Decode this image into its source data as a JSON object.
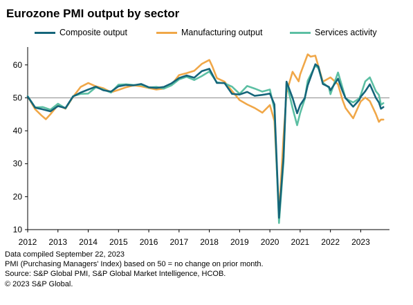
{
  "title": "Eurozone PMI output by sector",
  "footer": {
    "line1": "Data compiled September 22, 2023",
    "line2": "PMI (Purchasing Managers' Index) based on 50 = no change on prior month.",
    "line3": "Source: S&P Global PMI, S&P Global Market Intelligence, HCOB.",
    "line4": "© 2023 S&P Global."
  },
  "colors": {
    "composite": "#15657a",
    "manufacturing": "#f0a748",
    "services": "#5cbfa3",
    "baseline": "#8c8c8c",
    "axis": "#000000"
  },
  "chart_data": {
    "type": "line",
    "title": "Eurozone PMI output by sector",
    "xlabel": "",
    "ylabel": "",
    "xlim": [
      2012.0,
      2023.95
    ],
    "ylim": [
      10,
      65
    ],
    "y_ticks": [
      10,
      20,
      30,
      40,
      50,
      60
    ],
    "x_ticks": [
      "2012",
      "2013",
      "2014",
      "2015",
      "2016",
      "2017",
      "2018",
      "2019",
      "2020",
      "2021",
      "2022",
      "2023"
    ],
    "reference_line": 50,
    "grid": false,
    "legend_position": "top",
    "series": [
      {
        "name": "Composite output",
        "points": [
          [
            2012.0,
            50.4
          ],
          [
            2012.25,
            47.0
          ],
          [
            2012.5,
            46.5
          ],
          [
            2012.75,
            45.9
          ],
          [
            2013.0,
            47.5
          ],
          [
            2013.25,
            46.9
          ],
          [
            2013.5,
            50.4
          ],
          [
            2013.75,
            51.6
          ],
          [
            2014.0,
            52.5
          ],
          [
            2014.25,
            53.4
          ],
          [
            2014.5,
            52.3
          ],
          [
            2014.75,
            51.9
          ],
          [
            2015.0,
            53.5
          ],
          [
            2015.25,
            53.9
          ],
          [
            2015.5,
            53.8
          ],
          [
            2015.75,
            54.2
          ],
          [
            2016.0,
            53.2
          ],
          [
            2016.25,
            53.0
          ],
          [
            2016.5,
            53.3
          ],
          [
            2016.75,
            54.4
          ],
          [
            2017.0,
            56.0
          ],
          [
            2017.25,
            56.8
          ],
          [
            2017.5,
            56.1
          ],
          [
            2017.75,
            58.1
          ],
          [
            2018.0,
            58.8
          ],
          [
            2018.25,
            54.5
          ],
          [
            2018.5,
            54.5
          ],
          [
            2018.75,
            51.2
          ],
          [
            2019.0,
            51.0
          ],
          [
            2019.25,
            51.8
          ],
          [
            2019.5,
            50.6
          ],
          [
            2019.75,
            50.9
          ],
          [
            2020.0,
            51.3
          ],
          [
            2020.15,
            48.0
          ],
          [
            2020.3,
            13.6
          ],
          [
            2020.45,
            31.9
          ],
          [
            2020.55,
            54.9
          ],
          [
            2020.75,
            50.0
          ],
          [
            2020.9,
            45.3
          ],
          [
            2021.0,
            47.8
          ],
          [
            2021.15,
            49.9
          ],
          [
            2021.25,
            53.8
          ],
          [
            2021.5,
            60.2
          ],
          [
            2021.6,
            59.5
          ],
          [
            2021.75,
            54.2
          ],
          [
            2021.95,
            53.3
          ],
          [
            2022.0,
            52.3
          ],
          [
            2022.25,
            55.8
          ],
          [
            2022.4,
            52.0
          ],
          [
            2022.5,
            49.9
          ],
          [
            2022.75,
            47.3
          ],
          [
            2022.95,
            49.3
          ],
          [
            2023.0,
            50.3
          ],
          [
            2023.15,
            52.0
          ],
          [
            2023.3,
            54.1
          ],
          [
            2023.5,
            50.0
          ],
          [
            2023.6,
            48.6
          ],
          [
            2023.67,
            46.7
          ],
          [
            2023.75,
            47.2
          ]
        ]
      },
      {
        "name": "Manufacturing output",
        "points": [
          [
            2012.0,
            50.5
          ],
          [
            2012.25,
            46.5
          ],
          [
            2012.45,
            44.7
          ],
          [
            2012.6,
            43.5
          ],
          [
            2012.75,
            45.0
          ],
          [
            2013.0,
            47.8
          ],
          [
            2013.25,
            46.7
          ],
          [
            2013.5,
            50.3
          ],
          [
            2013.75,
            53.3
          ],
          [
            2014.0,
            54.5
          ],
          [
            2014.25,
            53.5
          ],
          [
            2014.5,
            52.9
          ],
          [
            2014.75,
            51.7
          ],
          [
            2015.0,
            52.4
          ],
          [
            2015.25,
            53.2
          ],
          [
            2015.5,
            53.8
          ],
          [
            2015.75,
            53.5
          ],
          [
            2016.0,
            53.0
          ],
          [
            2016.25,
            52.5
          ],
          [
            2016.5,
            52.8
          ],
          [
            2016.75,
            54.0
          ],
          [
            2017.0,
            56.9
          ],
          [
            2017.25,
            57.5
          ],
          [
            2017.5,
            58.2
          ],
          [
            2017.75,
            60.3
          ],
          [
            2018.0,
            61.5
          ],
          [
            2018.1,
            59.5
          ],
          [
            2018.25,
            56.0
          ],
          [
            2018.5,
            54.9
          ],
          [
            2018.75,
            52.1
          ],
          [
            2019.0,
            49.3
          ],
          [
            2019.25,
            48.0
          ],
          [
            2019.5,
            46.9
          ],
          [
            2019.75,
            45.5
          ],
          [
            2020.0,
            47.8
          ],
          [
            2020.15,
            43.0
          ],
          [
            2020.3,
            14.7
          ],
          [
            2020.45,
            38.0
          ],
          [
            2020.55,
            51.6
          ],
          [
            2020.75,
            57.9
          ],
          [
            2020.95,
            55.0
          ],
          [
            2021.0,
            57.1
          ],
          [
            2021.25,
            63.2
          ],
          [
            2021.35,
            62.5
          ],
          [
            2021.5,
            62.8
          ],
          [
            2021.75,
            54.9
          ],
          [
            2022.0,
            56.2
          ],
          [
            2022.25,
            54.1
          ],
          [
            2022.4,
            49.3
          ],
          [
            2022.5,
            46.9
          ],
          [
            2022.75,
            43.8
          ],
          [
            2022.95,
            47.9
          ],
          [
            2023.0,
            48.9
          ],
          [
            2023.15,
            50.1
          ],
          [
            2023.3,
            49.0
          ],
          [
            2023.5,
            45.1
          ],
          [
            2023.6,
            42.7
          ],
          [
            2023.67,
            43.4
          ],
          [
            2023.75,
            43.4
          ]
        ]
      },
      {
        "name": "Services activity",
        "points": [
          [
            2012.0,
            50.5
          ],
          [
            2012.25,
            47.1
          ],
          [
            2012.5,
            47.2
          ],
          [
            2012.75,
            46.4
          ],
          [
            2013.0,
            48.2
          ],
          [
            2013.25,
            46.8
          ],
          [
            2013.5,
            50.5
          ],
          [
            2013.75,
            51.2
          ],
          [
            2014.0,
            51.3
          ],
          [
            2014.25,
            53.2
          ],
          [
            2014.5,
            52.5
          ],
          [
            2014.75,
            51.6
          ],
          [
            2015.0,
            54.0
          ],
          [
            2015.25,
            54.1
          ],
          [
            2015.5,
            53.9
          ],
          [
            2015.75,
            54.0
          ],
          [
            2016.0,
            53.1
          ],
          [
            2016.25,
            53.3
          ],
          [
            2016.5,
            52.8
          ],
          [
            2016.75,
            53.8
          ],
          [
            2017.0,
            55.6
          ],
          [
            2017.25,
            56.4
          ],
          [
            2017.5,
            55.4
          ],
          [
            2017.75,
            56.6
          ],
          [
            2018.0,
            58.0
          ],
          [
            2018.25,
            54.7
          ],
          [
            2018.5,
            54.4
          ],
          [
            2018.75,
            53.4
          ],
          [
            2019.0,
            51.2
          ],
          [
            2019.25,
            53.6
          ],
          [
            2019.5,
            52.8
          ],
          [
            2019.75,
            51.9
          ],
          [
            2020.0,
            52.5
          ],
          [
            2020.15,
            46.5
          ],
          [
            2020.3,
            12.0
          ],
          [
            2020.45,
            30.5
          ],
          [
            2020.55,
            54.7
          ],
          [
            2020.75,
            46.9
          ],
          [
            2020.9,
            41.7
          ],
          [
            2021.0,
            45.4
          ],
          [
            2021.15,
            49.6
          ],
          [
            2021.25,
            55.2
          ],
          [
            2021.5,
            59.8
          ],
          [
            2021.6,
            59.0
          ],
          [
            2021.75,
            54.6
          ],
          [
            2021.95,
            53.1
          ],
          [
            2022.0,
            51.1
          ],
          [
            2022.25,
            57.7
          ],
          [
            2022.4,
            53.0
          ],
          [
            2022.5,
            49.8
          ],
          [
            2022.75,
            48.6
          ],
          [
            2022.95,
            49.8
          ],
          [
            2023.0,
            50.8
          ],
          [
            2023.15,
            55.0
          ],
          [
            2023.3,
            56.2
          ],
          [
            2023.5,
            52.0
          ],
          [
            2023.6,
            50.9
          ],
          [
            2023.67,
            47.9
          ],
          [
            2023.75,
            48.4
          ]
        ]
      }
    ]
  }
}
